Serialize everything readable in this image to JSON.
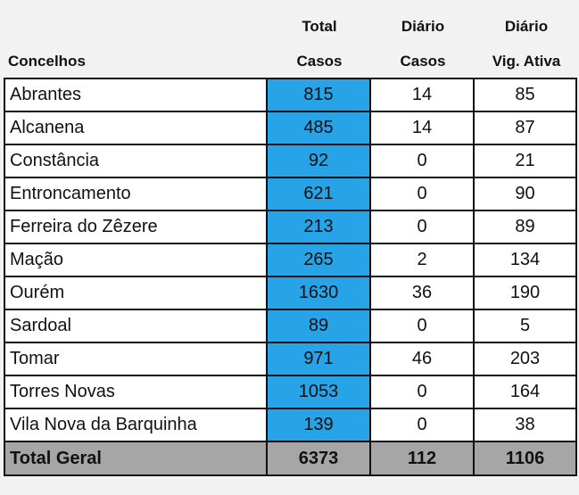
{
  "header": {
    "col_name": "Concelhos",
    "col_total_line1": "Total",
    "col_total_line2": "Casos",
    "col_daily_line1": "Diário",
    "col_daily_line2": "Casos",
    "col_vig_line1": "Diário",
    "col_vig_line2": "Vig. Ativa"
  },
  "rows": [
    {
      "name": "Abrantes",
      "total": "815",
      "daily": "14",
      "vig": "85"
    },
    {
      "name": "Alcanena",
      "total": "485",
      "daily": "14",
      "vig": "87"
    },
    {
      "name": "Constância",
      "total": "92",
      "daily": "0",
      "vig": "21"
    },
    {
      "name": "Entroncamento",
      "total": "621",
      "daily": "0",
      "vig": "90"
    },
    {
      "name": "Ferreira do Zêzere",
      "total": "213",
      "daily": "0",
      "vig": "89"
    },
    {
      "name": "Mação",
      "total": "265",
      "daily": "2",
      "vig": "134"
    },
    {
      "name": "Ourém",
      "total": "1630",
      "daily": "36",
      "vig": "190"
    },
    {
      "name": "Sardoal",
      "total": "89",
      "daily": "0",
      "vig": "5"
    },
    {
      "name": "Tomar",
      "total": "971",
      "daily": "46",
      "vig": "203"
    },
    {
      "name": "Torres Novas",
      "total": "1053",
      "daily": "0",
      "vig": "164"
    },
    {
      "name": "Vila Nova da Barquinha",
      "total": "139",
      "daily": "0",
      "vig": "38"
    }
  ],
  "totals": {
    "name": "Total Geral",
    "total": "6373",
    "daily": "112",
    "vig": "1106"
  },
  "colors": {
    "total_column": "#27a4e8",
    "totals_row": "#a6a6a6"
  }
}
